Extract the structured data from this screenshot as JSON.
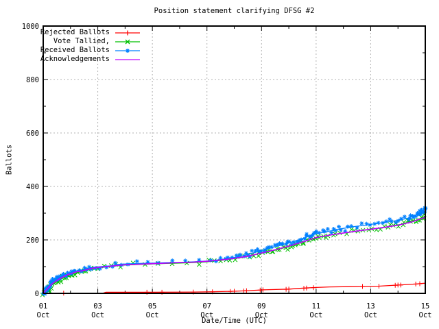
{
  "window": {
    "title": "Position statement clarifying DFSG #2"
  },
  "chart_data": {
    "type": "line",
    "title": "Position statement clarifying DFSG #2",
    "xlabel": "Date/Time (UTC)",
    "ylabel": "Ballots",
    "ylim": [
      0,
      1000
    ],
    "xlim_days": [
      0,
      14
    ],
    "grid": true,
    "grid_color": "#b0b0b0",
    "background_color": "#ffffff",
    "border_color": "#000000",
    "legend_position": "top-left",
    "y_ticks": [
      0,
      200,
      400,
      600,
      800,
      1000
    ],
    "y_minor_step": 100,
    "x_ticks": [
      {
        "day": 0,
        "date": "01",
        "month": "Oct"
      },
      {
        "day": 2,
        "date": "03",
        "month": "Oct"
      },
      {
        "day": 4,
        "date": "05",
        "month": "Oct"
      },
      {
        "day": 6,
        "date": "07",
        "month": "Oct"
      },
      {
        "day": 8,
        "date": "09",
        "month": "Oct"
      },
      {
        "day": 10,
        "date": "11",
        "month": "Oct"
      },
      {
        "day": 12,
        "date": "13",
        "month": "Oct"
      },
      {
        "day": 14,
        "date": "15",
        "month": "Oct"
      }
    ],
    "series": [
      {
        "name": "Rejected Ballots",
        "color": "#ff0000",
        "marker": "plus",
        "points": [
          [
            0,
            0
          ],
          [
            0.5,
            0
          ],
          [
            0.75,
            1
          ],
          [
            1.5,
            1
          ],
          [
            2.2,
            1
          ],
          [
            2.3,
            4
          ],
          [
            3.8,
            4
          ],
          [
            5.5,
            5
          ],
          [
            6.2,
            6
          ],
          [
            7.0,
            8
          ],
          [
            7.5,
            10
          ],
          [
            8.05,
            13
          ],
          [
            9.0,
            16
          ],
          [
            9.6,
            20
          ],
          [
            10.0,
            22
          ],
          [
            10.5,
            24
          ],
          [
            11.7,
            26
          ],
          [
            12.3,
            27
          ],
          [
            13.0,
            31
          ],
          [
            13.65,
            35
          ],
          [
            14.0,
            38
          ]
        ],
        "marker_points": [
          [
            0.75,
            1
          ],
          [
            3.8,
            4
          ],
          [
            4.35,
            4
          ],
          [
            5.5,
            5
          ],
          [
            6.2,
            6
          ],
          [
            6.85,
            7
          ],
          [
            7.0,
            8
          ],
          [
            7.35,
            9
          ],
          [
            7.45,
            10
          ],
          [
            7.95,
            12
          ],
          [
            8.05,
            13
          ],
          [
            8.9,
            15
          ],
          [
            9.0,
            16
          ],
          [
            9.55,
            19
          ],
          [
            9.65,
            20
          ],
          [
            9.9,
            21
          ],
          [
            11.7,
            26
          ],
          [
            12.3,
            27
          ],
          [
            12.9,
            30
          ],
          [
            13.0,
            31
          ],
          [
            13.1,
            31
          ],
          [
            13.65,
            35
          ],
          [
            13.8,
            36
          ]
        ]
      },
      {
        "name": "Vote Tallied,",
        "color": "#00c000",
        "marker": "cross",
        "scatter_band": true,
        "points": [
          [
            0,
            0
          ],
          [
            0.15,
            15
          ],
          [
            0.3,
            30
          ],
          [
            0.5,
            45
          ],
          [
            0.7,
            57
          ],
          [
            0.9,
            66
          ],
          [
            1.1,
            73
          ],
          [
            1.3,
            79
          ],
          [
            1.5,
            84
          ],
          [
            1.7,
            90
          ],
          [
            1.9,
            95
          ],
          [
            2.1,
            97
          ],
          [
            2.4,
            99
          ],
          [
            2.7,
            103
          ],
          [
            3.0,
            106
          ],
          [
            3.5,
            108
          ],
          [
            4.0,
            110
          ],
          [
            4.5,
            112
          ],
          [
            5.0,
            113
          ],
          [
            5.5,
            115
          ],
          [
            6.0,
            118
          ],
          [
            6.4,
            122
          ],
          [
            6.8,
            127
          ],
          [
            7.2,
            133
          ],
          [
            7.6,
            141
          ],
          [
            8.0,
            150
          ],
          [
            8.4,
            160
          ],
          [
            8.8,
            170
          ],
          [
            9.2,
            181
          ],
          [
            9.6,
            195
          ],
          [
            10.0,
            207
          ],
          [
            10.4,
            216
          ],
          [
            10.8,
            223
          ],
          [
            11.2,
            228
          ],
          [
            11.6,
            234
          ],
          [
            12.0,
            239
          ],
          [
            12.4,
            245
          ],
          [
            12.8,
            252
          ],
          [
            13.2,
            260
          ],
          [
            13.6,
            271
          ],
          [
            13.9,
            283
          ],
          [
            14.0,
            290
          ]
        ]
      },
      {
        "name": "Received Ballots",
        "color": "#0080ff",
        "marker": "star",
        "scatter_band": true,
        "points": [
          [
            0,
            2
          ],
          [
            0.1,
            12
          ],
          [
            0.2,
            25
          ],
          [
            0.3,
            38
          ],
          [
            0.45,
            50
          ],
          [
            0.6,
            60
          ],
          [
            0.75,
            67
          ],
          [
            0.9,
            73
          ],
          [
            1.05,
            78
          ],
          [
            1.2,
            84
          ],
          [
            1.4,
            87
          ],
          [
            1.6,
            93
          ],
          [
            1.8,
            97
          ],
          [
            2.0,
            99
          ],
          [
            2.2,
            101
          ],
          [
            2.5,
            103
          ],
          [
            2.7,
            108
          ],
          [
            3.0,
            110
          ],
          [
            3.3,
            111
          ],
          [
            3.6,
            112
          ],
          [
            4.0,
            113
          ],
          [
            4.5,
            115
          ],
          [
            5.0,
            116
          ],
          [
            5.5,
            118
          ],
          [
            6.0,
            121
          ],
          [
            6.3,
            124
          ],
          [
            6.6,
            128
          ],
          [
            7.0,
            134
          ],
          [
            7.4,
            143
          ],
          [
            7.8,
            154
          ],
          [
            8.2,
            166
          ],
          [
            8.6,
            177
          ],
          [
            9.0,
            189
          ],
          [
            9.4,
            201
          ],
          [
            9.7,
            213
          ],
          [
            10.0,
            223
          ],
          [
            10.3,
            229
          ],
          [
            10.6,
            235
          ],
          [
            11.0,
            243
          ],
          [
            11.4,
            250
          ],
          [
            11.8,
            255
          ],
          [
            12.2,
            261
          ],
          [
            12.6,
            267
          ],
          [
            13.0,
            273
          ],
          [
            13.4,
            282
          ],
          [
            13.7,
            295
          ],
          [
            13.9,
            308
          ],
          [
            14.0,
            322
          ]
        ]
      },
      {
        "name": "Acknowledgements",
        "color": "#c000ff",
        "marker": "none",
        "points": [
          [
            0,
            0
          ],
          [
            0.3,
            34
          ],
          [
            0.6,
            55
          ],
          [
            0.9,
            70
          ],
          [
            1.2,
            80
          ],
          [
            1.5,
            86
          ],
          [
            1.8,
            94
          ],
          [
            2.1,
            98
          ],
          [
            2.5,
            102
          ],
          [
            3.0,
            107
          ],
          [
            3.5,
            109
          ],
          [
            4.0,
            111
          ],
          [
            4.5,
            113
          ],
          [
            5.0,
            115
          ],
          [
            5.5,
            117
          ],
          [
            6.0,
            120
          ],
          [
            6.5,
            125
          ],
          [
            7.0,
            131
          ],
          [
            7.5,
            139
          ],
          [
            8.0,
            151
          ],
          [
            8.5,
            163
          ],
          [
            9.0,
            177
          ],
          [
            9.5,
            192
          ],
          [
            10.0,
            209
          ],
          [
            10.5,
            218
          ],
          [
            11.0,
            226
          ],
          [
            11.5,
            233
          ],
          [
            12.0,
            240
          ],
          [
            12.5,
            247
          ],
          [
            13.0,
            255
          ],
          [
            13.5,
            267
          ],
          [
            14.0,
            285
          ]
        ]
      }
    ]
  }
}
